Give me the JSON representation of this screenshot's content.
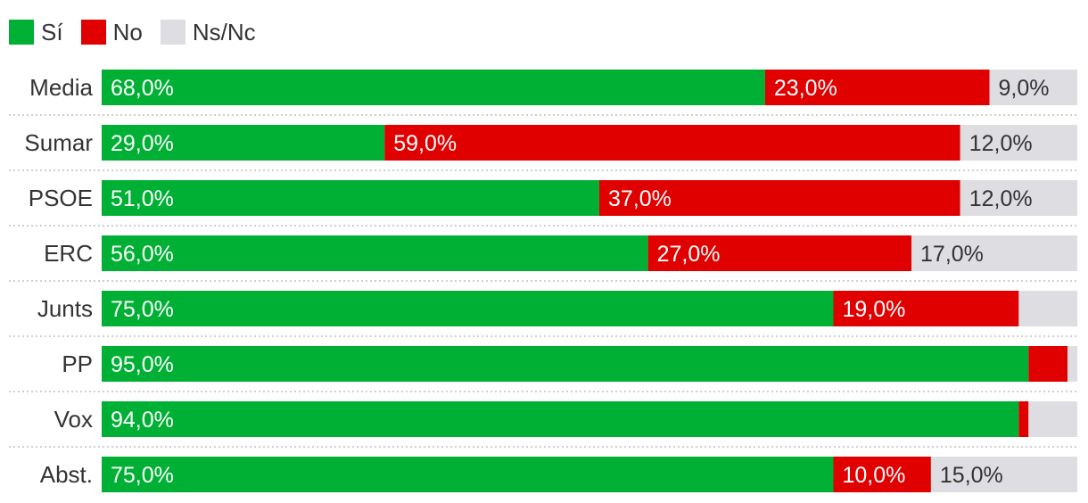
{
  "chart_data": {
    "type": "bar",
    "orientation": "horizontal",
    "stacked": true,
    "xlim": [
      0,
      100
    ],
    "legend_position": "top-left",
    "categories": [
      "Media",
      "Sumar",
      "PSOE",
      "ERC",
      "Junts",
      "PP",
      "Vox",
      "Abst."
    ],
    "series": [
      {
        "name": "Sí",
        "values": [
          68.0,
          29.0,
          51.0,
          56.0,
          75.0,
          95.0,
          94.0,
          75.0
        ],
        "labels": [
          "68,0%",
          "29,0%",
          "51,0%",
          "56,0%",
          "75,0%",
          "95,0%",
          "94,0%",
          "75,0%"
        ]
      },
      {
        "name": "No",
        "values": [
          23.0,
          59.0,
          37.0,
          27.0,
          19.0,
          4.0,
          1.0,
          10.0
        ],
        "labels": [
          "23,0%",
          "59,0%",
          "37,0%",
          "27,0%",
          "19,0%",
          "",
          "",
          "10,0%"
        ]
      },
      {
        "name": "Ns/Nc",
        "values": [
          9.0,
          12.0,
          12.0,
          17.0,
          6.0,
          1.0,
          5.0,
          15.0
        ],
        "labels": [
          "9,0%",
          "12,0%",
          "12,0%",
          "17,0%",
          "",
          "",
          "",
          "15,0%"
        ]
      }
    ],
    "colors": [
      "#00b035",
      "#e00000",
      "#dedde2"
    ],
    "label_colors": [
      "#ffffff",
      "#ffffff",
      "#333333"
    ],
    "separator_color": "#bfbfbf"
  }
}
